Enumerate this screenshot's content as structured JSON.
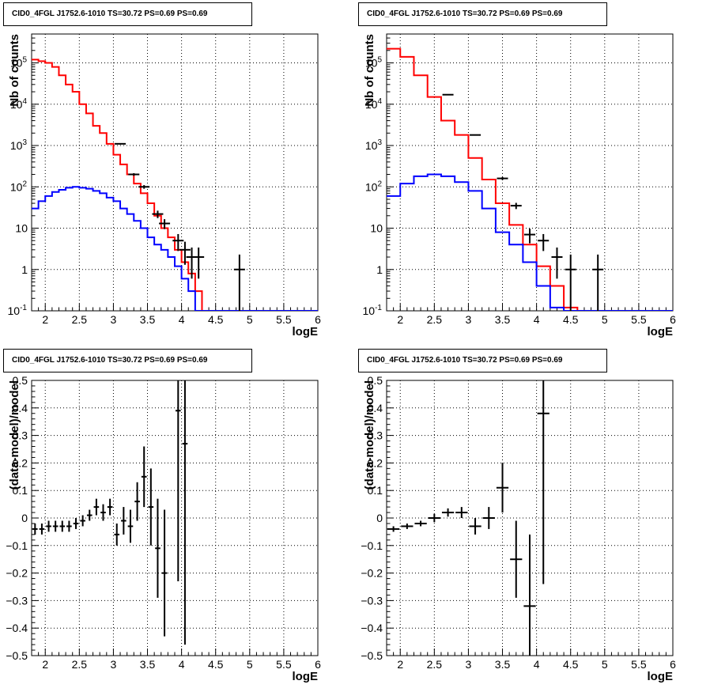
{
  "chart_data": [
    {
      "type": "line",
      "title": "CID0_4FGL J1752.6-1010 TS=30.72 PS=0.69 PS=0.69",
      "xlabel": "logE",
      "ylabel": "Nb of counts",
      "xlim": [
        1.8,
        6.0
      ],
      "ylim": [
        0.1,
        500000
      ],
      "yscale": "log",
      "grid": true,
      "xticks": [
        "2",
        "2.5",
        "3",
        "3.5",
        "4",
        "4.5",
        "5",
        "5.5",
        "6"
      ],
      "yticks": [
        "10^-1",
        "1",
        "10",
        "10^2",
        "10^3",
        "10^4",
        "10^5"
      ],
      "bin_edges": [
        1.8,
        1.9,
        2.0,
        2.1,
        2.2,
        2.3,
        2.4,
        2.5,
        2.6,
        2.7,
        2.8,
        2.9,
        3.0,
        3.1,
        3.2,
        3.3,
        3.4,
        3.5,
        3.6,
        3.7,
        3.8,
        3.9,
        4.0,
        4.1,
        4.2,
        4.3,
        4.4,
        4.5,
        4.6,
        4.7,
        4.8,
        4.9,
        5.0,
        5.1,
        5.2,
        5.3,
        5.4,
        5.5,
        5.6,
        5.7,
        5.8,
        5.9,
        6.0
      ],
      "series": [
        {
          "color": "#ff0000",
          "style": "step",
          "values": [
            120000,
            110000,
            100000,
            80000,
            50000,
            30000,
            20000,
            10000,
            6000,
            3000,
            2000,
            1100,
            600,
            350,
            200,
            120,
            70,
            40,
            20,
            10,
            6,
            3,
            1.5,
            0.8,
            0.3,
            0.1,
            0.1,
            0.1,
            0.1,
            0.1,
            0.1,
            0.1,
            0.1,
            0.1,
            0.1,
            0.1,
            0.1,
            0.1,
            0.1,
            0.1,
            0.1,
            0.1
          ]
        },
        {
          "color": "#0000ff",
          "style": "step",
          "values": [
            30,
            45,
            60,
            75,
            85,
            95,
            100,
            95,
            90,
            80,
            70,
            55,
            45,
            30,
            22,
            15,
            10,
            6,
            4,
            3,
            2,
            1.2,
            0.6,
            0.3,
            0.1,
            0.1,
            0.1,
            0.1,
            0.1,
            0.1,
            0.1,
            0.1,
            0.1,
            0.1,
            0.1,
            0.1,
            0.1,
            0.1,
            0.1,
            0.1,
            0.1,
            0.1
          ]
        },
        {
          "color": "#000000",
          "style": "points",
          "x": [
            3.1,
            3.3,
            3.45,
            3.65,
            3.75,
            3.95,
            4.05,
            4.15,
            4.25,
            4.85
          ],
          "y": [
            1100,
            200,
            100,
            22,
            13,
            5,
            3,
            2,
            2,
            1
          ],
          "yerr_lo": [
            1060,
            186,
            90,
            17.5,
            9.5,
            2.8,
            1.3,
            0.6,
            0.6,
            0.1
          ],
          "yerr_hi": [
            1140,
            214,
            110,
            26.5,
            16.5,
            7.2,
            4.7,
            3.4,
            3.4,
            2.3
          ]
        }
      ]
    },
    {
      "type": "line",
      "title": "CID0_4FGL J1752.6-1010 TS=30.72 PS=0.69 PS=0.69",
      "xlabel": "logE",
      "ylabel": "Nb of counts",
      "xlim": [
        1.8,
        6.0
      ],
      "ylim": [
        0.1,
        500000
      ],
      "yscale": "log",
      "grid": true,
      "xticks": [
        "2",
        "2.5",
        "3",
        "3.5",
        "4",
        "4.5",
        "5",
        "5.5",
        "6"
      ],
      "yticks": [
        "10^-1",
        "1",
        "10",
        "10^2",
        "10^3",
        "10^4",
        "10^5"
      ],
      "bin_edges": [
        1.8,
        2.0,
        2.2,
        2.4,
        2.6,
        2.8,
        3.0,
        3.2,
        3.4,
        3.6,
        3.8,
        4.0,
        4.2,
        4.4,
        4.6,
        4.8,
        5.0,
        5.2,
        5.4,
        5.6,
        5.8,
        6.0
      ],
      "series": [
        {
          "color": "#ff0000",
          "style": "step",
          "values": [
            220000,
            140000,
            50000,
            15000,
            4000,
            1800,
            500,
            150,
            40,
            12,
            4,
            1.2,
            0.4,
            0.12,
            0.1,
            0.1,
            0.1,
            0.1,
            0.1,
            0.1,
            0.1
          ]
        },
        {
          "color": "#0000ff",
          "style": "step",
          "values": [
            60,
            120,
            180,
            200,
            180,
            130,
            80,
            30,
            8,
            4,
            1.5,
            0.4,
            0.12,
            0.1,
            0.1,
            0.1,
            0.1,
            0.1,
            0.1,
            0.1,
            0.1
          ]
        },
        {
          "color": "#000000",
          "style": "points",
          "x": [
            2.7,
            3.1,
            3.5,
            3.7,
            3.9,
            4.1,
            4.3,
            4.5,
            4.9
          ],
          "y": [
            17000,
            1800,
            160,
            35,
            7,
            5,
            2,
            1,
            1
          ],
          "yerr_lo": [
            16870,
            1758,
            147,
            29,
            4.3,
            2.8,
            0.6,
            0.1,
            0.1
          ],
          "yerr_hi": [
            17130,
            1842,
            173,
            41,
            9.7,
            7.2,
            3.4,
            2.3,
            2.3
          ]
        }
      ]
    },
    {
      "type": "scatter",
      "title": "CID0_4FGL J1752.6-1010 TS=30.72 PS=0.69 PS=0.69",
      "xlabel": "logE",
      "ylabel": "(data-model)/model",
      "xlim": [
        1.8,
        6.0
      ],
      "ylim": [
        -0.5,
        0.5
      ],
      "grid": true,
      "xticks": [
        "2",
        "2.5",
        "3",
        "3.5",
        "4",
        "4.5",
        "5",
        "5.5",
        "6"
      ],
      "yticks": [
        "−0.5",
        "−0.4",
        "−0.3",
        "−0.2",
        "−0.1",
        "0",
        "0.1",
        "0.2",
        "0.3",
        "0.4",
        "0.5"
      ],
      "series": [
        {
          "color": "#000000",
          "x": [
            1.85,
            1.95,
            2.05,
            2.15,
            2.25,
            2.35,
            2.45,
            2.55,
            2.65,
            2.75,
            2.85,
            2.95,
            3.05,
            3.15,
            3.25,
            3.35,
            3.45,
            3.55,
            3.65,
            3.75,
            3.95,
            4.05
          ],
          "y": [
            -0.04,
            -0.04,
            -0.03,
            -0.03,
            -0.03,
            -0.03,
            -0.02,
            -0.01,
            0.01,
            0.04,
            0.02,
            0.04,
            -0.06,
            -0.01,
            -0.03,
            0.06,
            0.15,
            0.04,
            -0.11,
            -0.2,
            0.39,
            0.27
          ],
          "yerr": [
            0.02,
            0.02,
            0.02,
            0.02,
            0.02,
            0.02,
            0.02,
            0.02,
            0.02,
            0.03,
            0.03,
            0.03,
            0.04,
            0.05,
            0.06,
            0.07,
            0.11,
            0.14,
            0.18,
            0.23,
            0.62,
            0.73
          ]
        }
      ]
    },
    {
      "type": "scatter",
      "title": "CID0_4FGL J1752.6-1010 TS=30.72 PS=0.69 PS=0.69",
      "xlabel": "logE",
      "ylabel": "(data-model)/model",
      "xlim": [
        1.8,
        6.0
      ],
      "ylim": [
        -0.5,
        0.5
      ],
      "grid": true,
      "xticks": [
        "2",
        "2.5",
        "3",
        "3.5",
        "4",
        "4.5",
        "5",
        "5.5",
        "6"
      ],
      "yticks": [
        "−0.5",
        "−0.4",
        "−0.3",
        "−0.2",
        "−0.1",
        "0",
        "0.1",
        "0.2",
        "0.3",
        "0.4",
        "0.5"
      ],
      "series": [
        {
          "color": "#000000",
          "x": [
            1.9,
            2.1,
            2.3,
            2.5,
            2.7,
            2.9,
            3.1,
            3.3,
            3.5,
            3.7,
            3.9,
            4.1
          ],
          "y": [
            -0.04,
            -0.03,
            -0.02,
            0.0,
            0.02,
            0.02,
            -0.03,
            0.0,
            0.11,
            -0.15,
            -0.32,
            0.38
          ],
          "yerr": [
            0.01,
            0.01,
            0.01,
            0.015,
            0.015,
            0.02,
            0.03,
            0.04,
            0.09,
            0.14,
            0.26,
            0.62
          ]
        }
      ]
    }
  ]
}
